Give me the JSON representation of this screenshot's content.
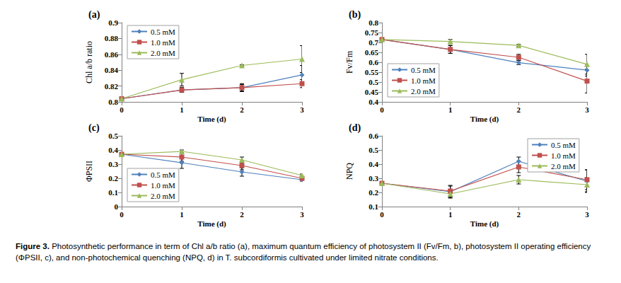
{
  "caption_label": "Figure 3.",
  "caption": "Photosynthetic performance in term of Chl a/b ratio (a), maximum quantum efficiency of photosystem II (Fv/Fm, b), photosystem II operating efficiency (ΦPSII, c), and non-photochemical quenching (NPQ, d) in T. subcordiformis cultivated under limited nitrate conditions.",
  "chart_data": [
    {
      "type": "line",
      "title": "(a)",
      "x_label": "Time (d)",
      "y_label": "Chl a/b ratio",
      "x": [
        0,
        1,
        2,
        3
      ],
      "xlim": [
        0,
        3
      ],
      "xticks": [
        0,
        1,
        2,
        3
      ],
      "ylim": [
        0.8,
        0.9
      ],
      "yticks": [
        0.8,
        0.82,
        0.84,
        0.86,
        0.88,
        0.9
      ],
      "grid": false,
      "legend": "upper left",
      "series": [
        {
          "name": "0.5 mM",
          "color": "#4f81bd",
          "marker": "diamond",
          "values": [
            0.804,
            0.815,
            0.818,
            0.834
          ],
          "errors": [
            0.001,
            0.003,
            0.005,
            0.012
          ]
        },
        {
          "name": "1.0 mM",
          "color": "#c0504d",
          "marker": "square",
          "values": [
            0.804,
            0.815,
            0.818,
            0.823
          ],
          "errors": [
            0.001,
            0.003,
            0.004,
            0.005
          ]
        },
        {
          "name": "2.0 mM",
          "color": "#9bbb59",
          "marker": "triangle",
          "values": [
            0.804,
            0.828,
            0.846,
            0.854
          ],
          "errors": [
            0.001,
            0.008,
            0.001,
            0.017
          ]
        }
      ]
    },
    {
      "type": "line",
      "title": "(b)",
      "x_label": "Time (d)",
      "y_label": "Fv/Fm",
      "x": [
        0,
        1,
        2,
        3
      ],
      "xlim": [
        0,
        3
      ],
      "xticks": [
        0,
        1,
        2,
        3
      ],
      "ylim": [
        0.4,
        0.8
      ],
      "yticks": [
        0.4,
        0.45,
        0.5,
        0.55,
        0.6,
        0.65,
        0.7,
        0.75,
        0.8
      ],
      "grid": false,
      "legend": "lower left",
      "series": [
        {
          "name": "0.5 mM",
          "color": "#4f81bd",
          "marker": "diamond",
          "values": [
            0.715,
            0.665,
            0.598,
            0.56
          ],
          "errors": [
            0.005,
            0.02,
            0.01,
            0.03
          ]
        },
        {
          "name": "1.0 mM",
          "color": "#c0504d",
          "marker": "square",
          "values": [
            0.715,
            0.665,
            0.625,
            0.505
          ],
          "errors": [
            0.005,
            0.02,
            0.015,
            0.06
          ]
        },
        {
          "name": "2.0 mM",
          "color": "#9bbb59",
          "marker": "triangle",
          "values": [
            0.715,
            0.705,
            0.685,
            0.59
          ],
          "errors": [
            0.005,
            0.01,
            0.005,
            0.05
          ]
        }
      ]
    },
    {
      "type": "line",
      "title": "(c)",
      "x_label": "Time (d)",
      "y_label": "ΦPSII",
      "x": [
        0,
        1,
        2,
        3
      ],
      "xlim": [
        0,
        3
      ],
      "xticks": [
        0,
        1,
        2,
        3
      ],
      "ylim": [
        0,
        0.5
      ],
      "yticks": [
        0,
        0.1,
        0.2,
        0.3,
        0.4,
        0.5
      ],
      "grid": false,
      "legend": "lower left",
      "series": [
        {
          "name": "0.5 mM",
          "color": "#4f81bd",
          "marker": "diamond",
          "values": [
            0.37,
            0.31,
            0.245,
            0.19
          ],
          "errors": [
            0.01,
            0.04,
            0.03,
            0.01
          ]
        },
        {
          "name": "1.0 mM",
          "color": "#c0504d",
          "marker": "square",
          "values": [
            0.37,
            0.35,
            0.29,
            0.2
          ],
          "errors": [
            0.01,
            0.03,
            0.03,
            0.01
          ]
        },
        {
          "name": "2.0 mM",
          "color": "#9bbb59",
          "marker": "triangle",
          "values": [
            0.37,
            0.39,
            0.33,
            0.22
          ],
          "errors": [
            0.01,
            0.01,
            0.02,
            0.01
          ]
        }
      ]
    },
    {
      "type": "line",
      "title": "(d)",
      "x_label": "Time (d)",
      "y_label": "NPQ",
      "x": [
        0,
        1,
        2,
        3
      ],
      "xlim": [
        0,
        3
      ],
      "xticks": [
        0,
        1,
        2,
        3
      ],
      "ylim": [
        0.1,
        0.6
      ],
      "yticks": [
        0.1,
        0.2,
        0.3,
        0.4,
        0.5,
        0.6
      ],
      "grid": false,
      "legend": "upper right",
      "series": [
        {
          "name": "0.5 mM",
          "color": "#4f81bd",
          "marker": "diamond",
          "values": [
            0.265,
            0.205,
            0.42,
            0.28
          ],
          "errors": [
            0.01,
            0.04,
            0.03,
            0.08
          ]
        },
        {
          "name": "1.0 mM",
          "color": "#c0504d",
          "marker": "square",
          "values": [
            0.265,
            0.21,
            0.38,
            0.29
          ],
          "errors": [
            0.01,
            0.04,
            0.04,
            0.07
          ]
        },
        {
          "name": "2.0 mM",
          "color": "#9bbb59",
          "marker": "triangle",
          "values": [
            0.265,
            0.19,
            0.29,
            0.255
          ],
          "errors": [
            0.01,
            0.03,
            0.03,
            0.05
          ]
        }
      ]
    }
  ]
}
